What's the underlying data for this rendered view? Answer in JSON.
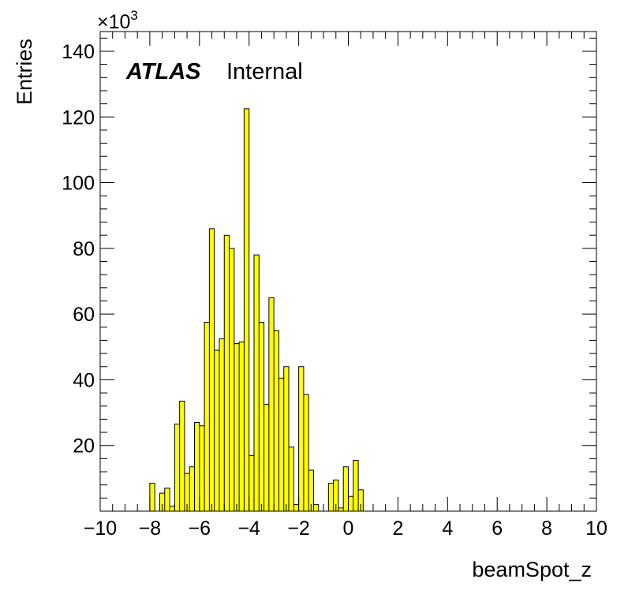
{
  "chart_data": {
    "type": "bar",
    "histogram": true,
    "xlim": [
      -10,
      10
    ],
    "ylim": [
      0,
      146000
    ],
    "bin_width": 0.2,
    "x_tick_labels": [
      "−10",
      "−8",
      "−6",
      "−4",
      "−2",
      "0",
      "2",
      "4",
      "6",
      "8",
      "10"
    ],
    "x_ticks": [
      -10,
      -8,
      -6,
      -4,
      -2,
      0,
      2,
      4,
      6,
      8,
      10
    ],
    "y_tick_labels": [
      "20",
      "40",
      "60",
      "80",
      "100",
      "120",
      "140"
    ],
    "y_ticks": [
      20000,
      40000,
      60000,
      80000,
      100000,
      120000,
      140000
    ],
    "y_exponent_label": "×10",
    "y_exponent_power": "3",
    "xlabel": "beamSpot_z",
    "ylabel": "Entries",
    "annotation_bold": "ATLAS",
    "annotation_text": "Internal",
    "fill_color": "#ffff00",
    "line_color": "#000000",
    "bins": [
      {
        "x": -8.0,
        "y": 8500
      },
      {
        "x": -7.6,
        "y": 5500
      },
      {
        "x": -7.4,
        "y": 7000
      },
      {
        "x": -7.2,
        "y": 1500
      },
      {
        "x": -7.0,
        "y": 26500
      },
      {
        "x": -6.8,
        "y": 33500
      },
      {
        "x": -6.6,
        "y": 11500
      },
      {
        "x": -6.4,
        "y": 13500
      },
      {
        "x": -6.2,
        "y": 27000
      },
      {
        "x": -6.0,
        "y": 26000
      },
      {
        "x": -5.8,
        "y": 57500
      },
      {
        "x": -5.6,
        "y": 86000
      },
      {
        "x": -5.4,
        "y": 49000
      },
      {
        "x": -5.2,
        "y": 52500
      },
      {
        "x": -5.0,
        "y": 84000
      },
      {
        "x": -4.8,
        "y": 80000
      },
      {
        "x": -4.6,
        "y": 51000
      },
      {
        "x": -4.4,
        "y": 51500
      },
      {
        "x": -4.2,
        "y": 122500
      },
      {
        "x": -4.0,
        "y": 17000
      },
      {
        "x": -3.8,
        "y": 78000
      },
      {
        "x": -3.6,
        "y": 57500
      },
      {
        "x": -3.4,
        "y": 32500
      },
      {
        "x": -3.2,
        "y": 65000
      },
      {
        "x": -3.0,
        "y": 55000
      },
      {
        "x": -2.8,
        "y": 40500
      },
      {
        "x": -2.6,
        "y": 44000
      },
      {
        "x": -2.4,
        "y": 19500
      },
      {
        "x": -2.2,
        "y": 2000
      },
      {
        "x": -2.0,
        "y": 44000
      },
      {
        "x": -1.8,
        "y": 35500
      },
      {
        "x": -1.6,
        "y": 12500
      },
      {
        "x": -1.4,
        "y": 2000
      },
      {
        "x": -0.8,
        "y": 8500
      },
      {
        "x": -0.6,
        "y": 9500
      },
      {
        "x": -0.4,
        "y": 1000
      },
      {
        "x": -0.2,
        "y": 13500
      },
      {
        "x": 0.0,
        "y": 4500
      },
      {
        "x": 0.2,
        "y": 15500
      },
      {
        "x": 0.4,
        "y": 6500
      }
    ]
  }
}
